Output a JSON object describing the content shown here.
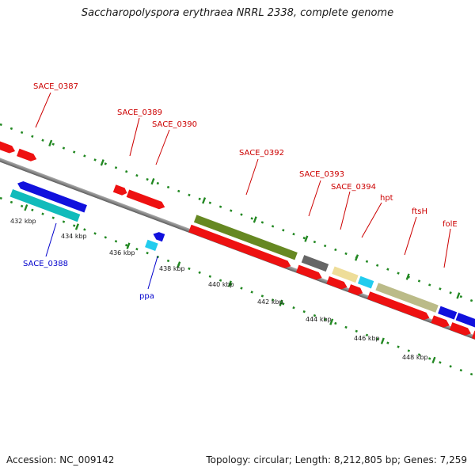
{
  "title": "Saccharopolyspora erythraea NRRL 2338, complete genome",
  "footer": {
    "accession": "Accession: NC_009142",
    "summary": "Topology: circular; Length: 8,212,805 bp; Genes: 7,259"
  },
  "colors": {
    "red": "#ee1111",
    "blue": "#1111dd",
    "cyan": "#11bbbb",
    "light_cyan": "#22ccee",
    "olive": "#668822",
    "gray": "#666666",
    "khaki": "#bbbb88",
    "light_yellow": "#eedd99",
    "orange": "#ee8811",
    "forward_label": "#cc0000",
    "reverse_label": "#0000cc",
    "tick": "#228822"
  },
  "scale_labels": [
    "432 kbp",
    "434 kbp",
    "436 kbp",
    "438 kbp",
    "440 kbp",
    "442 kbp",
    "444 kbp",
    "446 kbp",
    "448 kbp"
  ],
  "labels": {
    "sace_0387": "SACE_0387",
    "sace_0389": "SACE_0389",
    "sace_0390": "SACE_0390",
    "sace_0392": "SACE_0392",
    "sace_0393": "SACE_0393",
    "sace_0394": "SACE_0394",
    "hpt": "hpt",
    "ftsh": "ftsH",
    "fole": "folE",
    "sace_0388": "SACE_0388",
    "ppa": "ppa"
  }
}
